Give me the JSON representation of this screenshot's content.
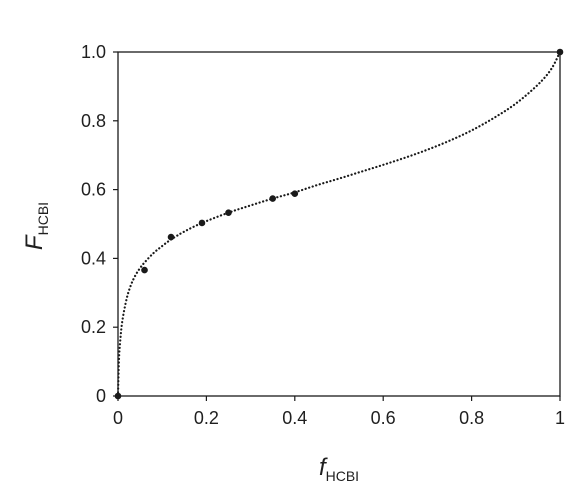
{
  "chart_data": {
    "type": "scatter",
    "xlabel": {
      "main": "f",
      "sub": "HCBI"
    },
    "ylabel": {
      "main": "F",
      "sub": "HCBI"
    },
    "xlim": [
      0,
      1
    ],
    "ylim": [
      0,
      1.0
    ],
    "x_ticks": [
      {
        "value": 0,
        "label": "0"
      },
      {
        "value": 0.2,
        "label": "0.2"
      },
      {
        "value": 0.4,
        "label": "0.4"
      },
      {
        "value": 0.6,
        "label": "0.6"
      },
      {
        "value": 0.8,
        "label": "0.8"
      },
      {
        "value": 1,
        "label": "1"
      }
    ],
    "y_ticks": [
      {
        "value": 0,
        "label": "0"
      },
      {
        "value": 0.2,
        "label": "0.2"
      },
      {
        "value": 0.4,
        "label": "0.4"
      },
      {
        "value": 0.6,
        "label": "0.6"
      },
      {
        "value": 0.8,
        "label": "0.8"
      },
      {
        "value": 1.0,
        "label": "1.0"
      }
    ],
    "grid": false,
    "series": [
      {
        "kind": "points",
        "marker": "filled-circle",
        "color": "#1a1a1a",
        "x": [
          0,
          0.06,
          0.12,
          0.19,
          0.25,
          0.35,
          0.4,
          1.0
        ],
        "y": [
          0,
          0.366,
          0.462,
          0.503,
          0.533,
          0.574,
          0.588,
          1.0
        ]
      },
      {
        "kind": "fit-curve",
        "style": "dotted",
        "color": "#1a1a1a",
        "x": [
          0,
          0.002,
          0.005,
          0.01,
          0.02,
          0.03,
          0.04,
          0.05,
          0.06,
          0.08,
          0.1,
          0.12,
          0.15,
          0.19,
          0.25,
          0.3,
          0.35,
          0.4,
          0.45,
          0.5,
          0.55,
          0.6,
          0.65,
          0.7,
          0.75,
          0.8,
          0.85,
          0.9,
          0.95,
          0.98,
          1.0
        ],
        "y": [
          0,
          0.1,
          0.16,
          0.22,
          0.285,
          0.325,
          0.352,
          0.372,
          0.388,
          0.415,
          0.436,
          0.455,
          0.478,
          0.503,
          0.533,
          0.554,
          0.574,
          0.592,
          0.613,
          0.632,
          0.652,
          0.672,
          0.693,
          0.716,
          0.742,
          0.772,
          0.808,
          0.85,
          0.905,
          0.95,
          1.0
        ]
      }
    ]
  }
}
